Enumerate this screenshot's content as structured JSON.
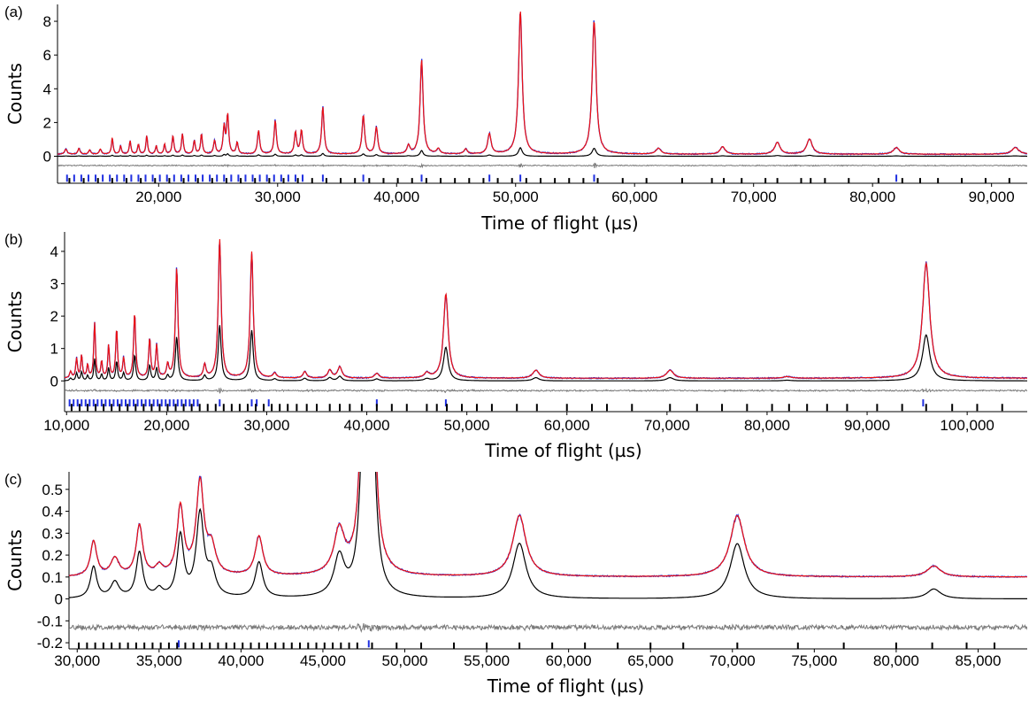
{
  "chart_data": [
    {
      "type": "line",
      "panel_label": "(a)",
      "xlabel": "Time of flight (µs)",
      "ylabel": "Counts",
      "xlim": [
        11500,
        93000
      ],
      "ylim": [
        -1.6,
        9
      ],
      "x_ticks": [
        20000,
        30000,
        40000,
        50000,
        60000,
        70000,
        80000,
        90000
      ],
      "x_tick_labels": [
        "20,000",
        "30,000",
        "40,000",
        "50,000",
        "60,000",
        "70,000",
        "80,000",
        "90,000"
      ],
      "y_ticks": [
        0,
        2,
        4,
        6,
        8
      ],
      "y_tick_labels": [
        "0",
        "2",
        "4",
        "6",
        "8"
      ],
      "grid": false,
      "series": [
        {
          "role": "observed",
          "color": "#1f2fe0"
        },
        {
          "role": "calculated",
          "color": "#ee1111"
        },
        {
          "role": "phase-contribution",
          "color": "#000000"
        },
        {
          "role": "difference",
          "color": "#7a7a7a"
        }
      ],
      "background": 0.12,
      "phase_scale": 0.06,
      "diff_offset": -0.55,
      "diff_amp": 0.06,
      "tick_rows": {
        "blue_y": -1.3,
        "black_y": -1.5
      },
      "peaks": [
        [
          12200,
          0.3,
          120
        ],
        [
          13300,
          0.35,
          100
        ],
        [
          14200,
          0.25,
          100
        ],
        [
          15100,
          0.3,
          100
        ],
        [
          16100,
          1.0,
          80
        ],
        [
          16800,
          0.5,
          80
        ],
        [
          17600,
          0.8,
          80
        ],
        [
          18300,
          0.6,
          80
        ],
        [
          19000,
          1.1,
          80
        ],
        [
          19800,
          0.5,
          80
        ],
        [
          20500,
          0.6,
          80
        ],
        [
          21200,
          1.1,
          90
        ],
        [
          22000,
          1.2,
          90
        ],
        [
          23000,
          0.8,
          90
        ],
        [
          23600,
          1.2,
          90
        ],
        [
          24700,
          0.8,
          100
        ],
        [
          25500,
          1.6,
          100
        ],
        [
          25800,
          2.3,
          100
        ],
        [
          26600,
          0.7,
          100
        ],
        [
          28400,
          1.4,
          110
        ],
        [
          29800,
          2.0,
          110
        ],
        [
          31500,
          1.3,
          110
        ],
        [
          32000,
          1.4,
          110
        ],
        [
          33800,
          2.8,
          120
        ],
        [
          37200,
          2.3,
          130
        ],
        [
          38300,
          1.6,
          130
        ],
        [
          41000,
          0.5,
          140
        ],
        [
          42100,
          5.6,
          150
        ],
        [
          43500,
          0.3,
          160
        ],
        [
          45800,
          0.3,
          160
        ],
        [
          47800,
          1.2,
          170
        ],
        [
          50400,
          8.5,
          180
        ],
        [
          56600,
          7.9,
          200
        ],
        [
          62000,
          0.35,
          250
        ],
        [
          67400,
          0.45,
          250
        ],
        [
          72000,
          0.7,
          270
        ],
        [
          74700,
          0.9,
          280
        ],
        [
          82000,
          0.4,
          300
        ],
        [
          92000,
          0.4,
          350
        ]
      ],
      "blue_ticks": [
        12300,
        12900,
        13500,
        14100,
        14700,
        15300,
        15900,
        16500,
        17100,
        17700,
        18300,
        18900,
        19500,
        20100,
        20700,
        21300,
        21900,
        22500,
        23100,
        23700,
        24300,
        24900,
        25500,
        26100,
        26700,
        27300,
        27900,
        28500,
        29100,
        29700,
        30300,
        30900,
        31500,
        32100,
        33800,
        37200,
        42100,
        47800,
        50400,
        56600,
        82000
      ],
      "black_ticks": [
        12500,
        13700,
        14900,
        16100,
        17300,
        18500,
        19700,
        20900,
        22100,
        23300,
        24500,
        25700,
        26900,
        28100,
        29300,
        30500,
        31700,
        32900,
        34100,
        35300,
        36500,
        37700,
        38900,
        40100,
        41300,
        42500,
        43700,
        44900,
        46100,
        47300,
        48500,
        49700,
        50900,
        52100,
        53300,
        54500,
        55700,
        56900,
        59000,
        61000,
        64000,
        66500,
        67500,
        69000,
        71000,
        72000,
        74000,
        74800,
        76000,
        78000,
        80500,
        82500,
        84000,
        85500,
        87500,
        89500,
        91500
      ]
    },
    {
      "type": "line",
      "panel_label": "(b)",
      "xlabel": "Time of flight (µs)",
      "ylabel": "Counts",
      "xlim": [
        9800,
        106000
      ],
      "ylim": [
        -0.95,
        4.6
      ],
      "x_ticks": [
        10000,
        20000,
        30000,
        40000,
        50000,
        60000,
        70000,
        80000,
        90000,
        100000
      ],
      "x_tick_labels": [
        "10,000",
        "20,000",
        "30,000",
        "40,000",
        "50,000",
        "60,000",
        "70,000",
        "80,000",
        "90,000",
        "100,000"
      ],
      "y_ticks": [
        0,
        1,
        2,
        3,
        4
      ],
      "y_tick_labels": [
        "0",
        "1",
        "2",
        "3",
        "4"
      ],
      "grid": false,
      "series": [
        {
          "role": "observed",
          "color": "#1f2fe0"
        },
        {
          "role": "calculated",
          "color": "#ee1111"
        },
        {
          "role": "phase-contribution",
          "color": "#000000"
        },
        {
          "role": "difference",
          "color": "#7a7a7a"
        }
      ],
      "background": 0.08,
      "phase_scale": 0.4,
      "diff_offset": -0.3,
      "diff_amp": 0.08,
      "tick_rows": {
        "blue_y": -0.68,
        "black_y": -0.82
      },
      "peaks": [
        [
          10400,
          0.2,
          120
        ],
        [
          11000,
          0.6,
          100
        ],
        [
          11500,
          0.7,
          100
        ],
        [
          12100,
          0.4,
          100
        ],
        [
          12800,
          1.7,
          100
        ],
        [
          13500,
          0.5,
          100
        ],
        [
          14200,
          1.0,
          100
        ],
        [
          15000,
          1.5,
          110
        ],
        [
          15700,
          0.6,
          110
        ],
        [
          16800,
          2.0,
          120
        ],
        [
          18300,
          1.2,
          120
        ],
        [
          19000,
          1.0,
          120
        ],
        [
          20100,
          0.4,
          130
        ],
        [
          21000,
          3.4,
          150
        ],
        [
          23800,
          0.4,
          150
        ],
        [
          25300,
          4.3,
          170
        ],
        [
          28500,
          3.9,
          180
        ],
        [
          30800,
          0.15,
          200
        ],
        [
          33800,
          0.2,
          220
        ],
        [
          36300,
          0.25,
          240
        ],
        [
          37300,
          0.35,
          250
        ],
        [
          41000,
          0.15,
          260
        ],
        [
          46000,
          0.15,
          300
        ],
        [
          47900,
          2.6,
          280
        ],
        [
          56900,
          0.25,
          380
        ],
        [
          70300,
          0.25,
          420
        ],
        [
          82000,
          0.05,
          450
        ],
        [
          95900,
          3.55,
          430
        ]
      ],
      "blue_ticks": [
        10300,
        10700,
        11100,
        11500,
        11900,
        12300,
        12700,
        13100,
        13500,
        13900,
        14300,
        14700,
        15100,
        15500,
        15900,
        16300,
        16700,
        17100,
        17500,
        17900,
        18300,
        18700,
        19100,
        19500,
        19900,
        20300,
        20700,
        21100,
        21500,
        21900,
        22300,
        22700,
        23100,
        25300,
        28500,
        29000,
        30200,
        41000,
        47900,
        95600
      ],
      "black_ticks": [
        10500,
        11300,
        12100,
        12900,
        13700,
        14500,
        15300,
        16100,
        16900,
        17700,
        18500,
        19300,
        20100,
        20900,
        21700,
        22500,
        23300,
        24100,
        24900,
        25700,
        26500,
        27300,
        28100,
        28900,
        29700,
        30500,
        31300,
        32100,
        33000,
        34000,
        35000,
        36300,
        37300,
        38300,
        39500,
        41000,
        42500,
        44000,
        46000,
        47000,
        48000,
        49500,
        51000,
        52500,
        55000,
        57000,
        60000,
        62500,
        64000,
        66500,
        70300,
        73000,
        75500,
        78000,
        80500,
        82200,
        84000,
        86000,
        88000,
        91000,
        93500,
        95900,
        98500,
        101000,
        103500
      ]
    },
    {
      "type": "line",
      "panel_label": "(c)",
      "xlabel": "Time of flight (µs)",
      "ylabel": "Counts",
      "xlim": [
        29500,
        88000
      ],
      "ylim": [
        -0.228,
        0.58
      ],
      "x_ticks": [
        30000,
        35000,
        40000,
        45000,
        50000,
        55000,
        60000,
        65000,
        70000,
        75000,
        80000,
        85000
      ],
      "x_tick_labels": [
        "30,000",
        "35,000",
        "40,000",
        "45,000",
        "50,000",
        "55,000",
        "60,000",
        "65,000",
        "70,000",
        "75,000",
        "80,000",
        "85,000"
      ],
      "y_ticks": [
        -0.2,
        -0.1,
        0,
        0.1,
        0.2,
        0.3,
        0.4,
        0.5
      ],
      "y_tick_labels": [
        "-0.2",
        "-0.1",
        "0",
        "0.1",
        "0.2",
        "0.3",
        "0.4",
        "0.5"
      ],
      "grid": false,
      "series": [
        {
          "role": "observed",
          "color": "#1f2fe0"
        },
        {
          "role": "calculated",
          "color": "#ee1111"
        },
        {
          "role": "phase-contribution",
          "color": "#000000"
        },
        {
          "role": "difference",
          "color": "#7a7a7a"
        }
      ],
      "background": 0.1,
      "phase_scale": 0.9,
      "diff_offset": -0.13,
      "diff_amp": 0.05,
      "tick_rows": {
        "blue_y": -0.205,
        "black_y": -0.215
      },
      "peaks": [
        [
          31000,
          0.16,
          230
        ],
        [
          32300,
          0.08,
          300
        ],
        [
          33800,
          0.23,
          240
        ],
        [
          35000,
          0.04,
          250
        ],
        [
          36300,
          0.31,
          240
        ],
        [
          37500,
          0.42,
          280
        ],
        [
          38200,
          0.12,
          300
        ],
        [
          41100,
          0.18,
          280
        ],
        [
          46000,
          0.2,
          380
        ],
        [
          47500,
          0.9,
          260
        ],
        [
          48000,
          0.9,
          260
        ],
        [
          57000,
          0.28,
          480
        ],
        [
          70300,
          0.28,
          520
        ],
        [
          82300,
          0.05,
          500
        ]
      ],
      "blue_ticks": [
        36200,
        47800
      ],
      "black_ticks": [
        30100,
        30600,
        31100,
        31600,
        32100,
        32600,
        33100,
        33600,
        34100,
        34600,
        35100,
        35600,
        36100,
        36600,
        37100,
        37600,
        38100,
        38600,
        39100,
        39600,
        40100,
        40600,
        41100,
        41600,
        42100,
        42600,
        43100,
        43600,
        44100,
        44600,
        45100,
        45600,
        46100,
        46600,
        47100,
        48000,
        49500,
        51000,
        53000,
        55000,
        57000,
        59000,
        61000,
        63000,
        65000,
        67000,
        70300,
        74000,
        76800,
        80000,
        82200,
        84300,
        86000
      ]
    }
  ]
}
